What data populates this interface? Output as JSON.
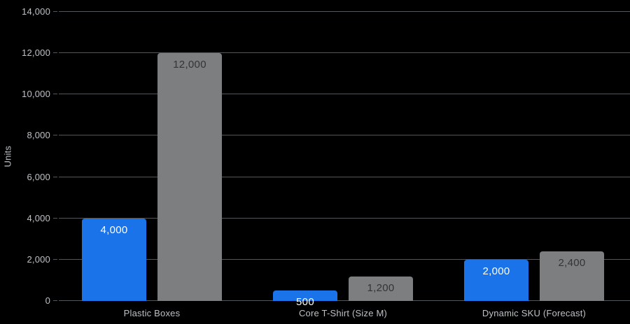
{
  "chart_data": {
    "type": "bar",
    "title": "",
    "xlabel": "",
    "ylabel": "Units",
    "categories": [
      "Plastic Boxes",
      "Core T-Shirt (Size M)",
      "Dynamic SKU (Forecast)"
    ],
    "series": [
      {
        "name": "blue-series",
        "color": "#1a73e8",
        "label_color": "#ffffff",
        "values": [
          4000,
          500,
          2000
        ],
        "value_labels": [
          "4,000",
          "500",
          "2,000"
        ]
      },
      {
        "name": "gray-series",
        "color": "#7c7e7f",
        "label_color": "#323538",
        "values": [
          12000,
          1200,
          2400
        ],
        "value_labels": [
          "12,000",
          "1,200",
          "2,400"
        ]
      }
    ],
    "ylim": [
      0,
      14000
    ],
    "ytick_step": 2000,
    "ytick_labels": [
      "0",
      "2,000",
      "4,000",
      "6,000",
      "8,000",
      "10,000",
      "12,000",
      "14,000"
    ],
    "grid": true,
    "legend_position": "none",
    "background_color": "#000000",
    "grid_color": "#54575a",
    "tick_label_color": "#bdc1c6",
    "category_label_color": "#bdc1c6",
    "axis_title_color": "#bdc1c6"
  }
}
